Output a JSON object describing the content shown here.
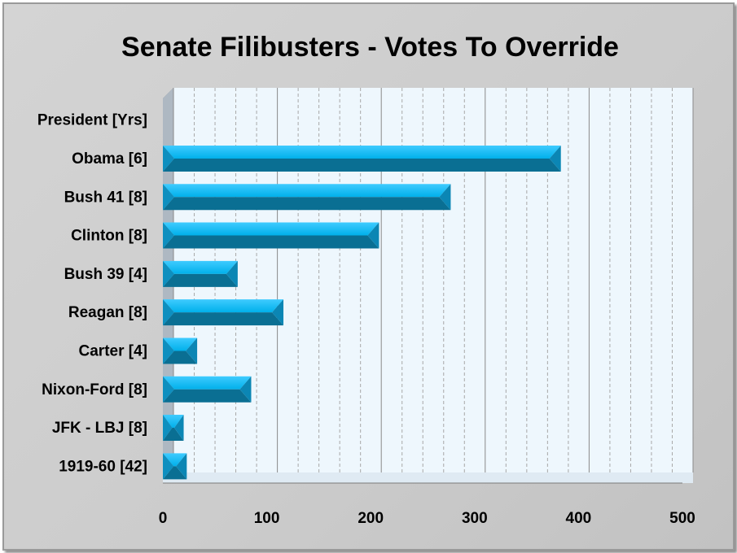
{
  "chart_data": {
    "type": "bar",
    "orientation": "horizontal",
    "title": "Senate Filibusters - Votes To Override",
    "categories": [
      "President [Yrs]",
      "Obama [6]",
      "Bush 41 [8]",
      "Clinton [8]",
      "Bush 39 [4]",
      "Reagan [8]",
      "Carter [4]",
      "Nixon-Ford [8]",
      "JFK - LBJ [8]",
      "1919-60 [42]"
    ],
    "values": [
      0,
      383,
      277,
      208,
      72,
      116,
      33,
      85,
      20,
      23
    ],
    "xlim": [
      0,
      500
    ],
    "x_ticks": [
      0,
      100,
      200,
      300,
      400,
      500
    ],
    "grid": "vertical major and minor",
    "bar_color": "#00b4f0",
    "bar_shadow_color": "#0a6f93",
    "plot_background": "#eef7fd",
    "legend": "none"
  }
}
